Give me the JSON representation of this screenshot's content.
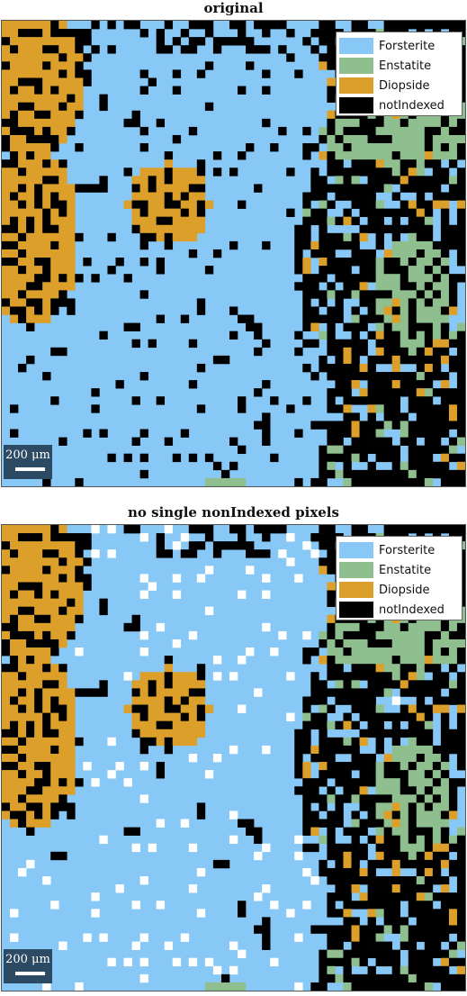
{
  "panels": [
    {
      "title": "original",
      "show_white_pixels": false
    },
    {
      "title": "no single nonIndexed pixels",
      "show_white_pixels": true
    }
  ],
  "legend": [
    {
      "label": "Forsterite",
      "color": "#88c8f6"
    },
    {
      "label": "Enstatite",
      "color": "#8fbf8f"
    },
    {
      "label": "Diopside",
      "color": "#dca02a"
    },
    {
      "label": "notIndexed",
      "color": "#000000"
    }
  ],
  "scalebar": {
    "label": "200 μm"
  },
  "colors": {
    "forsterite": "#88c8f6",
    "enstatite": "#8fbf8f",
    "diopside": "#dca02a",
    "notindexed": "#000000",
    "filled": "#ffffff"
  }
}
